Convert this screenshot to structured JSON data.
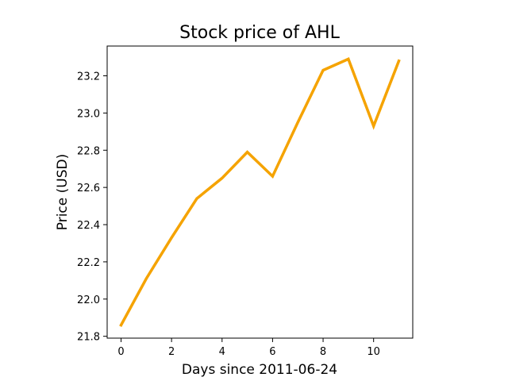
{
  "chart_data": {
    "type": "line",
    "title": "Stock price of AHL",
    "xlabel": "Days since 2011-06-24",
    "ylabel": "Price (USD)",
    "xlim": [
      -0.55,
      11.55
    ],
    "ylim": [
      21.79,
      23.36
    ],
    "xticks": [
      0,
      2,
      4,
      6,
      8,
      10
    ],
    "xtick_labels": [
      "0",
      "2",
      "4",
      "6",
      "8",
      "10"
    ],
    "yticks": [
      21.8,
      22.0,
      22.2,
      22.4,
      22.6,
      22.8,
      23.0,
      23.2
    ],
    "ytick_labels": [
      "21.8",
      "22.0",
      "22.2",
      "22.4",
      "22.6",
      "22.8",
      "23.0",
      "23.2"
    ],
    "grid": false,
    "series": [
      {
        "color": "#f5a300",
        "x": [
          0,
          1,
          2,
          3,
          4,
          5,
          6,
          7,
          8,
          9,
          10,
          11
        ],
        "y": [
          21.86,
          22.11,
          22.33,
          22.54,
          22.65,
          22.79,
          22.66,
          22.95,
          23.23,
          23.29,
          22.93,
          23.28
        ]
      }
    ]
  }
}
